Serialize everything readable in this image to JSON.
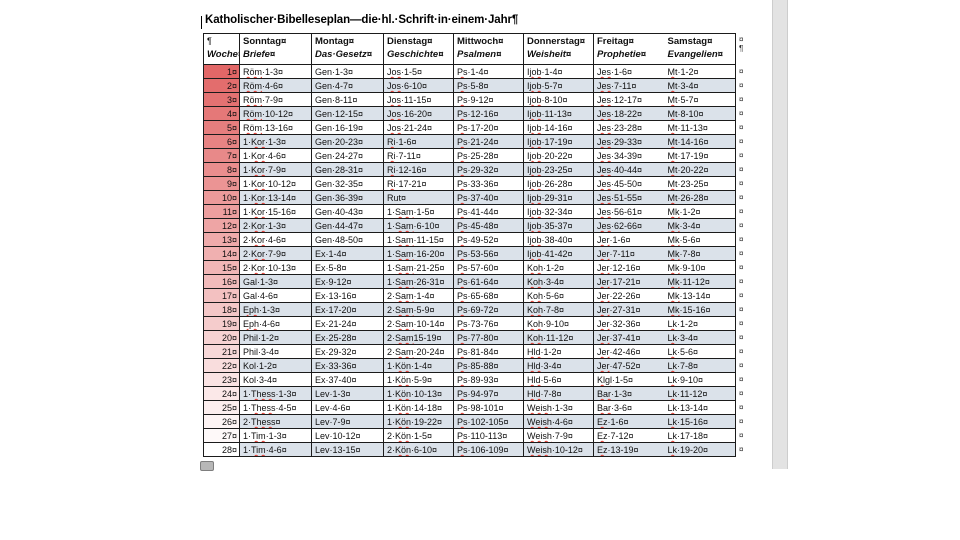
{
  "document": {
    "title": "Katholischer·Bibelleseplan—die·hl.·Schrift·in·einem·Jahr¶"
  },
  "table": {
    "week_header": {
      "line1": "¶",
      "line2": "Woche¤"
    },
    "days": [
      {
        "day": "Sonntag¤",
        "category": "Briefe¤"
      },
      {
        "day": "Montag¤",
        "category": "Das·Gesetz¤"
      },
      {
        "day": "Dienstag¤",
        "category": "Geschichte¤"
      },
      {
        "day": "Mittwoch¤",
        "category": "Psalmen¤"
      },
      {
        "day": "Donnerstag¤",
        "category": "Weisheit¤"
      },
      {
        "day": "Freitag¤",
        "category": "Prophetie¤"
      },
      {
        "day": "Samstag¤",
        "category": "Evangelien¤"
      }
    ],
    "header_eor_marker": "¤",
    "header_eor_pilcrow": "¶",
    "end_of_row_marker": "¤",
    "rows": [
      {
        "week": "1¤",
        "cells": [
          "Röm·1-3¤",
          "Gen·1-3¤",
          "Jos·1-5¤",
          "Ps·1-4¤",
          "Ijob·1-4¤",
          "Jes·1-6¤",
          "Mt·1-2¤"
        ]
      },
      {
        "week": "2¤",
        "cells": [
          "Röm·4-6¤",
          "Gen·4-7¤",
          "Jos·6-10¤",
          "Ps·5-8¤",
          "Ijob·5-7¤",
          "Jes·7-11¤",
          "Mt·3-4¤"
        ]
      },
      {
        "week": "3¤",
        "cells": [
          "Röm·7-9¤",
          "Gen·8-11¤",
          "Jos·11-15¤",
          "Ps·9-12¤",
          "Ijob·8-10¤",
          "Jes·12-17¤",
          "Mt·5-7¤"
        ]
      },
      {
        "week": "4¤",
        "cells": [
          "Röm·10-12¤",
          "Gen·12-15¤",
          "Jos·16-20¤",
          "Ps·12-16¤",
          "Ijob·11-13¤",
          "Jes·18-22¤",
          "Mt·8-10¤"
        ]
      },
      {
        "week": "5¤",
        "cells": [
          "Röm·13-16¤",
          "Gen·16-19¤",
          "Jos·21-24¤",
          "Ps·17-20¤",
          "Ijob·14-16¤",
          "Jes·23-28¤",
          "Mt·11-13¤"
        ]
      },
      {
        "week": "6¤",
        "cells": [
          "1·Kor·1-3¤",
          "Gen·20-23¤",
          "Ri·1-6¤",
          "Ps·21-24¤",
          "Ijob·17-19¤",
          "Jes·29-33¤",
          "Mt·14-16¤"
        ]
      },
      {
        "week": "7¤",
        "cells": [
          "1·Kor·4-6¤",
          "Gen·24-27¤",
          "Ri·7-11¤",
          "Ps·25-28¤",
          "Ijob·20-22¤",
          "Jes·34-39¤",
          "Mt·17-19¤"
        ]
      },
      {
        "week": "8¤",
        "cells": [
          "1·Kor·7-9¤",
          "Gen·28-31¤",
          "Ri·12-16¤",
          "Ps·29-32¤",
          "Ijob·23-25¤",
          "Jes·40-44¤",
          "Mt·20-22¤"
        ]
      },
      {
        "week": "9¤",
        "cells": [
          "1·Kor·10-12¤",
          "Gen·32-35¤",
          "Ri·17-21¤",
          "Ps·33-36¤",
          "Ijob·26-28¤",
          "Jes·45-50¤",
          "Mt·23-25¤"
        ]
      },
      {
        "week": "10¤",
        "cells": [
          "1·Kor·13-14¤",
          "Gen·36-39¤",
          "Rut¤",
          "Ps·37-40¤",
          "Ijob·29-31¤",
          "Jes·51-55¤",
          "Mt·26-28¤"
        ]
      },
      {
        "week": "11¤",
        "cells": [
          "1·Kor·15-16¤",
          "Gen·40-43¤",
          "1·Sam·1-5¤",
          "Ps·41-44¤",
          "Ijob·32-34¤",
          "Jes·56-61¤",
          "Mk·1-2¤"
        ]
      },
      {
        "week": "12¤",
        "cells": [
          "2·Kor·1-3¤",
          "Gen·44-47¤",
          "1·Sam·6-10¤",
          "Ps·45-48¤",
          "Ijob·35-37¤",
          "Jes·62-66¤",
          "Mk·3-4¤"
        ]
      },
      {
        "week": "13¤",
        "cells": [
          "2·Kor·4-6¤",
          "Gen·48-50¤",
          "1·Sam·11-15¤",
          "Ps·49-52¤",
          "Ijob·38-40¤",
          "Jer·1-6¤",
          "Mk·5-6¤"
        ]
      },
      {
        "week": "14¤",
        "cells": [
          "2·Kor·7-9¤",
          "Ex·1-4¤",
          "1·Sam·16-20¤",
          "Ps·53-56¤",
          "Ijob·41-42¤",
          "Jer·7-11¤",
          "Mk·7-8¤"
        ]
      },
      {
        "week": "15¤",
        "cells": [
          "2·Kor·10-13¤",
          "Ex·5-8¤",
          "1·Sam·21-25¤",
          "Ps·57-60¤",
          "Koh·1-2¤",
          "Jer·12-16¤",
          "Mk·9-10¤"
        ]
      },
      {
        "week": "16¤",
        "cells": [
          "Gal·1-3¤",
          "Ex·9-12¤",
          "1·Sam·26-31¤",
          "Ps·61-64¤",
          "Koh·3-4¤",
          "Jer·17-21¤",
          "Mk·11-12¤"
        ]
      },
      {
        "week": "17¤",
        "cells": [
          "Gal·4-6¤",
          "Ex·13-16¤",
          "2·Sam·1-4¤",
          "Ps·65-68¤",
          "Koh·5-6¤",
          "Jer·22-26¤",
          "Mk·13-14¤"
        ]
      },
      {
        "week": "18¤",
        "cells": [
          "Eph·1-3¤",
          "Ex·17-20¤",
          "2·Sam·5-9¤",
          "Ps·69-72¤",
          "Koh·7-8¤",
          "Jer·27-31¤",
          "Mk·15-16¤"
        ]
      },
      {
        "week": "19¤",
        "cells": [
          "Eph·4-6¤",
          "Ex·21-24¤",
          "2·Sam·10-14¤",
          "Ps·73-76¤",
          "Koh·9-10¤",
          "Jer·32-36¤",
          "Lk·1-2¤"
        ]
      },
      {
        "week": "20¤",
        "cells": [
          "Phil·1-2¤",
          "Ex·25-28¤",
          "2·Sam15-19¤",
          "Ps·77-80¤",
          "Koh·11-12¤",
          "Jer·37-41¤",
          "Lk·3-4¤"
        ]
      },
      {
        "week": "21¤",
        "cells": [
          "Phil·3-4¤",
          "Ex·29-32¤",
          "2·Sam·20-24¤",
          "Ps·81-84¤",
          "Hld·1-2¤",
          "Jer·42-46¤",
          "Lk·5-6¤"
        ]
      },
      {
        "week": "22¤",
        "cells": [
          "Kol·1-2¤",
          "Ex·33-36¤",
          "1·Kön·1-4¤",
          "Ps·85-88¤",
          "Hld·3-4¤",
          "Jer·47-52¤",
          "Lk·7-8¤"
        ]
      },
      {
        "week": "23¤",
        "cells": [
          "Kol·3-4¤",
          "Ex·37-40¤",
          "1·Kön·5-9¤",
          "Ps·89-93¤",
          "Hld·5-6¤",
          "Klgl·1-5¤",
          "Lk·9-10¤"
        ]
      },
      {
        "week": "24¤",
        "cells": [
          "1·Thess·1-3¤",
          "Lev·1-3¤",
          "1·Kön·10-13¤",
          "Ps·94-97¤",
          "Hld·7-8¤",
          "Bar·1-3¤",
          "Lk·11-12¤"
        ]
      },
      {
        "week": "25¤",
        "cells": [
          "1·Thess·4-5¤",
          "Lev·4-6¤",
          "1·Kön·14-18¤",
          "Ps·98-101¤",
          "Weish·1-3¤",
          "Bar·3-6¤",
          "Lk·13-14¤"
        ]
      },
      {
        "week": "26¤",
        "cells": [
          "2·Thess¤",
          "Lev·7-9¤",
          "1·Kön·19-22¤",
          "Ps·102-105¤",
          "Weish·4-6¤",
          "Ez·1-6¤",
          "Lk·15-16¤"
        ]
      },
      {
        "week": "27¤",
        "cells": [
          "1·Tim·1-3¤",
          "Lev·10-12¤",
          "2·Kön·1-5¤",
          "Ps·110-113¤",
          "Weish·7-9¤",
          "Ez·7-12¤",
          "Lk·17-18¤"
        ]
      },
      {
        "week": "28¤",
        "cells": [
          "1·Tim·4-6¤",
          "Lev·13-15¤",
          "2·Kön·6-10¤",
          "Ps·106-109¤",
          "Weish·10-12¤",
          "Ez·13-19¤",
          "Lk·19-20¤"
        ]
      }
    ]
  },
  "colors": {
    "row_alt_bg": "#dbe2ea",
    "table_border": "#1b1b1b",
    "week_gradient_from": "#e26767",
    "week_gradient_to": "#ffffff",
    "spellcheck_squiggle": "#e0382e",
    "page_edge_strip": "#e3e3e3"
  },
  "squiggle_tokens": [
    "Röm",
    "Kor",
    "Jos",
    "Ri",
    "Ps",
    "Ijob",
    "Jes",
    "Jer",
    "Mt",
    "Mk",
    "Lk",
    "Sam",
    "Kön",
    "Koh",
    "Hld",
    "Klgl",
    "Weish",
    "Bar",
    "Ez",
    "Eph",
    "Thess",
    "Tim"
  ]
}
